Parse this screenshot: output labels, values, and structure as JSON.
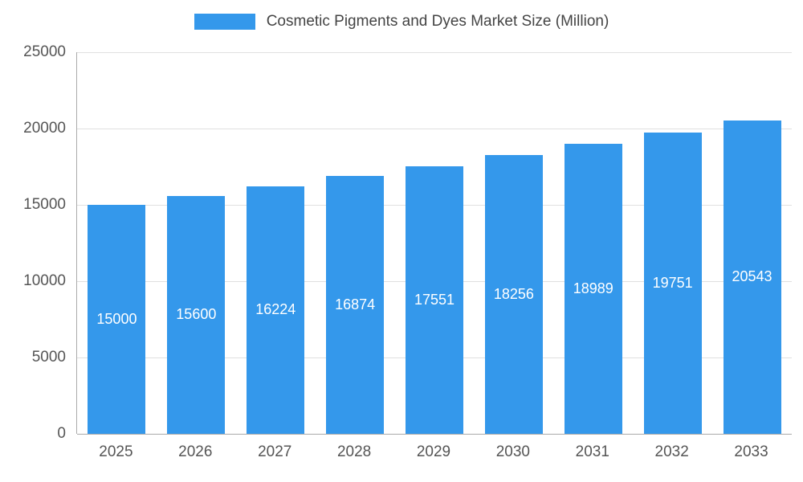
{
  "chart_data": {
    "type": "bar",
    "title": "Cosmetic Pigments and Dyes Market Size (Million)",
    "categories": [
      "2025",
      "2026",
      "2027",
      "2028",
      "2029",
      "2030",
      "2031",
      "2032",
      "2033"
    ],
    "values": [
      15000,
      15600,
      16224,
      16874,
      17551,
      18256,
      18989,
      19751,
      20543
    ],
    "xlabel": "",
    "ylabel": "",
    "ylim": [
      0,
      25000
    ],
    "yticks": [
      0,
      5000,
      10000,
      15000,
      20000,
      25000
    ],
    "grid": true,
    "legend_position": "top",
    "bar_color": "#3498eb",
    "bar_label_color": "#ffffff",
    "axis_text_color": "#555555",
    "gridline_color": "#e0e0e0"
  }
}
